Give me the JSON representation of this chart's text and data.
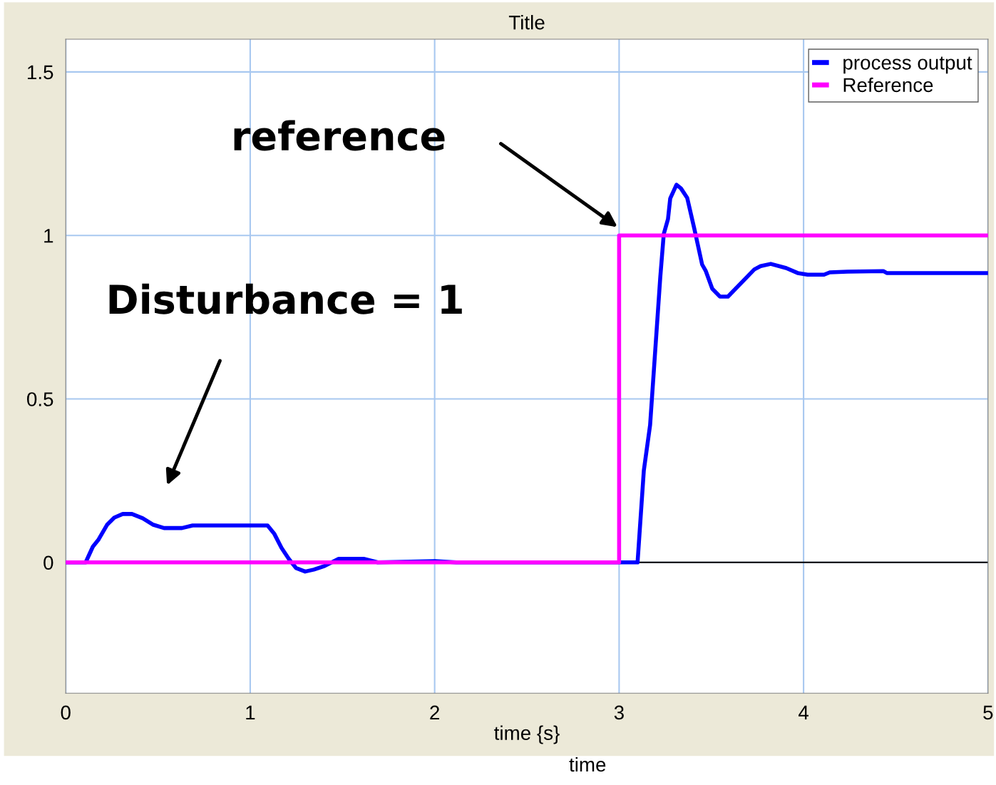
{
  "chart_data": {
    "type": "line",
    "title": "Title",
    "xlabel": "time {s}",
    "series": [
      {
        "name": "process output",
        "color": "#0000ff",
        "x": [
          0,
          0.108,
          0.147,
          0.178,
          0.224,
          0.263,
          0.309,
          0.359,
          0.417,
          0.475,
          0.533,
          0.63,
          0.688,
          1.094,
          1.131,
          1.17,
          1.209,
          1.248,
          1.298,
          1.345,
          1.403,
          1.48,
          1.615,
          1.692,
          2.002,
          2.117,
          3.1,
          3.134,
          3.168,
          3.223,
          3.242,
          3.265,
          3.277,
          3.311,
          3.335,
          3.369,
          3.408,
          3.45,
          3.47,
          3.505,
          3.547,
          3.59,
          3.733,
          3.767,
          3.822,
          3.906,
          3.968,
          4.022,
          4.111,
          4.142,
          4.239,
          4.432,
          4.451,
          5.0
        ],
        "values": [
          0,
          0,
          0.048,
          0.07,
          0.115,
          0.137,
          0.148,
          0.148,
          0.135,
          0.115,
          0.105,
          0.105,
          0.113,
          0.113,
          0.087,
          0.044,
          0.011,
          -0.017,
          -0.028,
          -0.022,
          -0.011,
          0.011,
          0.011,
          0,
          0.004,
          0,
          0,
          0.281,
          0.42,
          0.871,
          1.004,
          1.05,
          1.113,
          1.155,
          1.144,
          1.115,
          1.02,
          0.911,
          0.891,
          0.837,
          0.813,
          0.813,
          0.896,
          0.906,
          0.913,
          0.9,
          0.885,
          0.88,
          0.88,
          0.887,
          0.889,
          0.891,
          0.885,
          0.885
        ]
      },
      {
        "name": "Reference",
        "color": "#ff00ff",
        "x": [
          0,
          3,
          3,
          5
        ],
        "values": [
          0,
          0,
          1,
          1
        ]
      }
    ],
    "xlim": [
      0,
      5
    ],
    "ylim": [
      -0.4,
      1.6
    ],
    "xticks": [
      0,
      1,
      2,
      3,
      4,
      5
    ],
    "yticks": [
      0,
      0.5,
      1,
      1.5
    ],
    "grid": true,
    "legend": "top right",
    "line_style": "solid",
    "marker": "none",
    "ref_lines": [
      {
        "axis": "y",
        "value": 0,
        "color": "#000000"
      }
    ],
    "annotations": [
      "reference",
      "Disturbance = 1",
      "time"
    ]
  }
}
